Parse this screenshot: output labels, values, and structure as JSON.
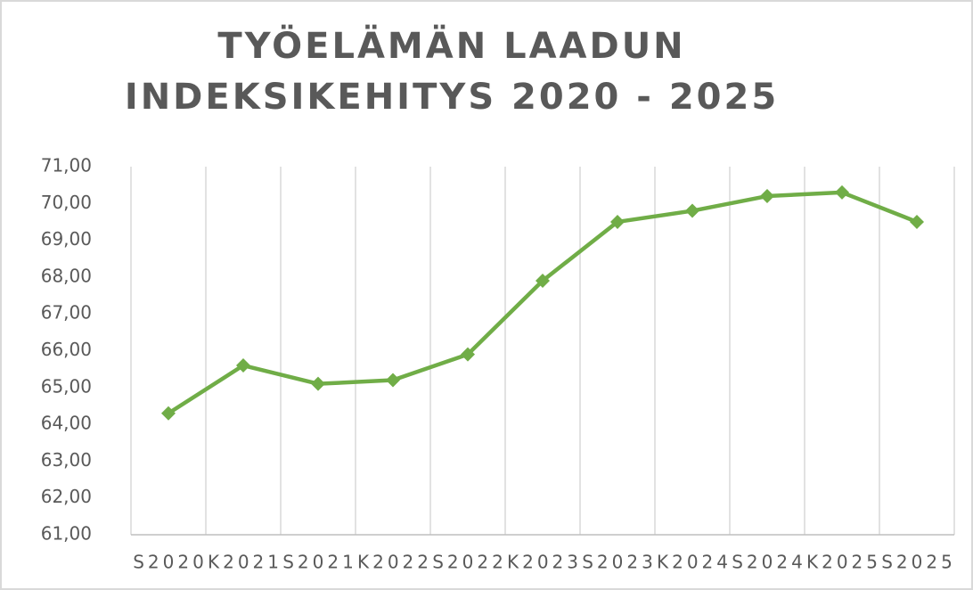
{
  "chart_data": {
    "type": "line",
    "title": [
      "TYÖELÄMÄN LAADUN",
      "INDEKSIKEHITYS 2020 - 2025"
    ],
    "categories": [
      "S2020",
      "K2021",
      "S2021",
      "K2022",
      "S2022",
      "K2023",
      "S2023",
      "K2024",
      "S2024",
      "K2025",
      "S2025"
    ],
    "series": [
      {
        "name": null,
        "color": "#70ad47",
        "values": [
          64.3,
          65.6,
          65.1,
          65.2,
          65.9,
          67.9,
          69.5,
          69.8,
          70.2,
          70.3,
          69.5
        ]
      }
    ],
    "ylim": [
      61,
      71
    ],
    "yticks": [
      {
        "value": 61,
        "label": "61,00"
      },
      {
        "value": 62,
        "label": "62,00"
      },
      {
        "value": 63,
        "label": "63,00"
      },
      {
        "value": 64,
        "label": "64,00"
      },
      {
        "value": 65,
        "label": "65,00"
      },
      {
        "value": 66,
        "label": "66,00"
      },
      {
        "value": 67,
        "label": "67,00"
      },
      {
        "value": 68,
        "label": "68,00"
      },
      {
        "value": 69,
        "label": "69,00"
      },
      {
        "value": 70,
        "label": "70,00"
      },
      {
        "value": 71,
        "label": "71,00"
      }
    ],
    "grid": "vertical"
  }
}
